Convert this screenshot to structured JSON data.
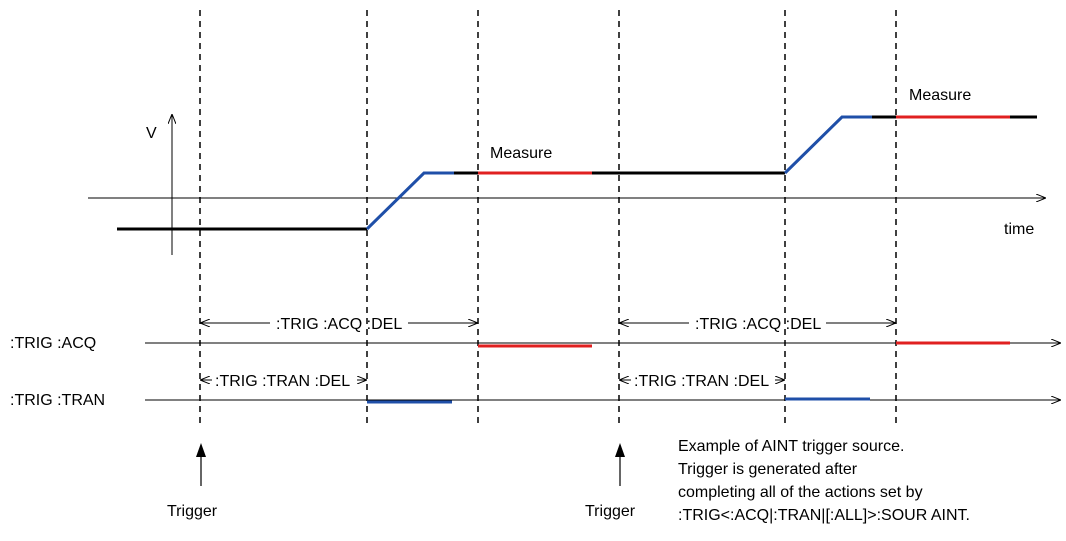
{
  "axes": {
    "y_label": "V",
    "x_label": "time"
  },
  "measure_labels": [
    "Measure",
    "Measure"
  ],
  "rows": {
    "acq": ":TRIG :ACQ",
    "tran": ":TRIG :TRAN"
  },
  "delays": {
    "acq_del_1": ":TRIG :ACQ :DEL",
    "tran_del_1": ":TRIG :TRAN :DEL",
    "acq_del_2": ":TRIG :ACQ :DEL",
    "tran_del_2": ":TRIG :TRAN :DEL"
  },
  "triggers": [
    "Trigger",
    "Trigger"
  ],
  "note": {
    "line1": "Example of AINT trigger source.",
    "line2": "Trigger is generated after",
    "line3": "completing all of the actions set by",
    "line4": ":TRIG<:ACQ|:TRAN|[:ALL]>:SOUR AINT."
  },
  "colors": {
    "wave": "#000000",
    "transition": "#1f4fa8",
    "measure": "#e02020"
  }
}
